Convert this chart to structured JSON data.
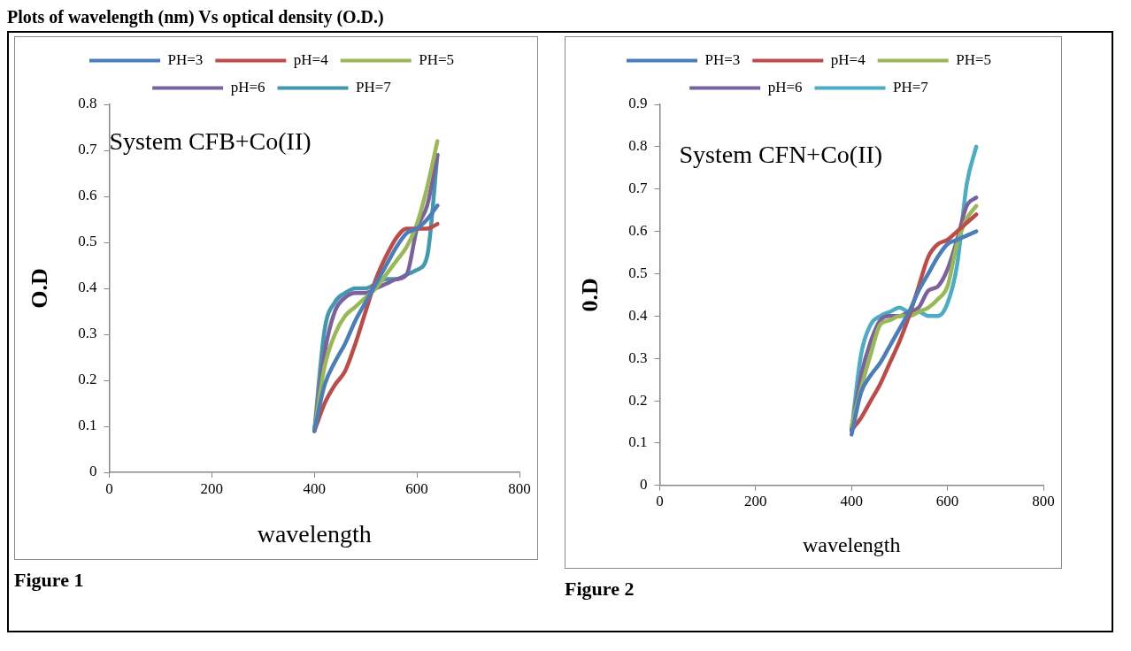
{
  "chart_data": [
    {
      "type": "line",
      "title": "Plots of wavelength (nm) Vs optical density (O.D.)",
      "xlabel": "wavelength",
      "ylabel": "O.D",
      "annotations": [
        "System CFB+Co(II)",
        "Figure 1"
      ],
      "x": [
        400,
        420,
        440,
        460,
        480,
        500,
        520,
        540,
        560,
        580,
        600,
        620,
        640
      ],
      "series": [
        {
          "name": "PH=3",
          "color": "#4a7ebb",
          "values": [
            0.09,
            0.19,
            0.24,
            0.28,
            0.33,
            0.37,
            0.41,
            0.45,
            0.49,
            0.52,
            0.53,
            0.55,
            0.58
          ]
        },
        {
          "name": "pH=4",
          "color": "#be4b48",
          "values": [
            0.09,
            0.15,
            0.19,
            0.22,
            0.28,
            0.35,
            0.42,
            0.47,
            0.51,
            0.53,
            0.53,
            0.53,
            0.54
          ]
        },
        {
          "name": "PH=5",
          "color": "#98b954",
          "values": [
            0.09,
            0.23,
            0.3,
            0.34,
            0.36,
            0.38,
            0.4,
            0.43,
            0.46,
            0.49,
            0.54,
            0.62,
            0.72
          ]
        },
        {
          "name": "pH=6",
          "color": "#7d60a0",
          "values": [
            0.09,
            0.26,
            0.35,
            0.38,
            0.39,
            0.39,
            0.4,
            0.41,
            0.42,
            0.43,
            0.53,
            0.58,
            0.69
          ]
        },
        {
          "name": "PH=7",
          "color": "#4198af",
          "values": [
            0.09,
            0.31,
            0.37,
            0.39,
            0.4,
            0.4,
            0.41,
            0.42,
            0.42,
            0.43,
            0.44,
            0.47,
            0.69
          ]
        }
      ],
      "xlim": [
        0,
        800
      ],
      "xticks": [
        0,
        200,
        400,
        600,
        800
      ],
      "ylim": [
        0,
        0.8
      ],
      "yticks": [
        0,
        0.1,
        0.2,
        0.3,
        0.4,
        0.5,
        0.6,
        0.7,
        0.8
      ],
      "legend": "top",
      "marker": "none",
      "line_style": "solid"
    },
    {
      "type": "line",
      "xlabel": "wavelength",
      "ylabel": "0.D",
      "annotations": [
        "System CFN+Co(II)",
        "Figure 2"
      ],
      "x": [
        400,
        420,
        440,
        460,
        480,
        500,
        520,
        540,
        560,
        580,
        600,
        620,
        640,
        660
      ],
      "series": [
        {
          "name": "PH=3",
          "color": "#4a7ebb",
          "values": [
            0.12,
            0.22,
            0.26,
            0.29,
            0.33,
            0.37,
            0.41,
            0.46,
            0.5,
            0.54,
            0.57,
            0.58,
            0.59,
            0.6
          ]
        },
        {
          "name": "pH=4",
          "color": "#be4b48",
          "values": [
            0.13,
            0.16,
            0.2,
            0.24,
            0.29,
            0.34,
            0.4,
            0.47,
            0.54,
            0.57,
            0.58,
            0.6,
            0.62,
            0.64
          ]
        },
        {
          "name": "PH=5",
          "color": "#98b954",
          "values": [
            0.14,
            0.23,
            0.31,
            0.38,
            0.39,
            0.4,
            0.4,
            0.41,
            0.42,
            0.44,
            0.47,
            0.57,
            0.63,
            0.66
          ]
        },
        {
          "name": "pH=6",
          "color": "#7d60a0",
          "values": [
            0.13,
            0.26,
            0.34,
            0.39,
            0.4,
            0.4,
            0.41,
            0.42,
            0.46,
            0.47,
            0.51,
            0.58,
            0.66,
            0.68
          ]
        },
        {
          "name": "PH=7",
          "color": "#4bacc6",
          "values": [
            0.13,
            0.31,
            0.38,
            0.4,
            0.41,
            0.42,
            0.41,
            0.41,
            0.4,
            0.4,
            0.43,
            0.52,
            0.71,
            0.8
          ]
        }
      ],
      "xlim": [
        0,
        800
      ],
      "xticks": [
        0,
        200,
        400,
        600,
        800
      ],
      "ylim": [
        0,
        0.9
      ],
      "yticks": [
        0,
        0.1,
        0.2,
        0.3,
        0.4,
        0.5,
        0.6,
        0.7,
        0.8,
        0.9
      ],
      "legend": "top",
      "marker": "none",
      "line_style": "solid"
    }
  ]
}
